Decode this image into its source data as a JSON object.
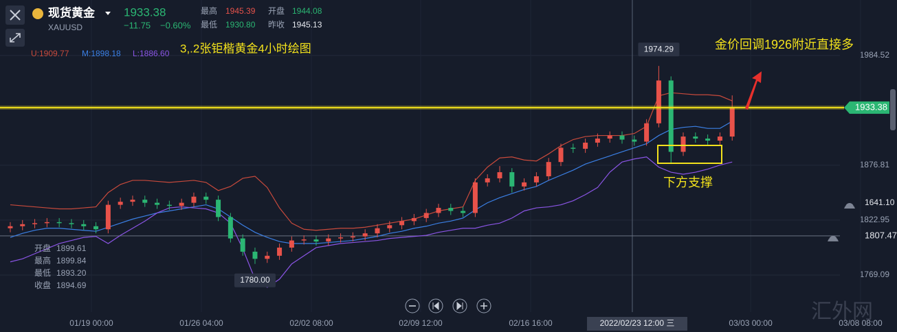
{
  "header": {
    "name": "现货黄金",
    "symbol": "XAUUSD",
    "price": "1933.38",
    "change": "−11.75",
    "change_pct": "−0.60%",
    "stats": [
      [
        "最高",
        "1945.39"
      ],
      [
        "开盘",
        "1944.08"
      ],
      [
        "最低",
        "1930.80"
      ],
      [
        "昨收",
        "1945.13"
      ]
    ]
  },
  "info_panel": [
    [
      "开盘",
      "1899.61"
    ],
    [
      "最高",
      "1899.84"
    ],
    [
      "最低",
      "1893.20"
    ],
    [
      "收盘",
      "1894.69"
    ]
  ],
  "watermark": "汇外网",
  "alert_note": "1641.10",
  "chart_data": {
    "type": "candlestick",
    "title": "3,.2张钜楷黄金4小时绘图",
    "annotations": [
      "金价回调1926附近直接多",
      "下方支撑"
    ],
    "x": [
      0,
      1,
      2,
      3,
      4,
      5,
      6,
      7,
      8,
      9,
      10,
      11,
      12,
      13,
      14,
      15,
      16,
      17,
      18,
      19,
      20,
      21,
      22,
      23,
      24,
      25,
      26,
      27,
      28,
      29,
      30,
      31,
      32,
      33,
      34,
      35,
      36,
      37,
      38,
      39,
      40,
      41,
      42,
      43,
      44,
      45,
      46,
      47,
      48,
      49,
      50,
      51,
      52,
      53,
      54,
      55,
      56,
      57,
      58,
      59
    ],
    "open": [
      1815,
      1817,
      1819,
      1820,
      1821,
      1820,
      1819,
      1817,
      1814,
      1838,
      1841,
      1843,
      1840,
      1838,
      1837,
      1840,
      1846,
      1843,
      1826,
      1805,
      1792,
      1785,
      1788,
      1796,
      1803,
      1804,
      1802,
      1805,
      1806,
      1807,
      1810,
      1815,
      1818,
      1822,
      1825,
      1830,
      1835,
      1832,
      1830,
      1860,
      1864,
      1870,
      1856,
      1860,
      1866,
      1880,
      1894,
      1893,
      1899,
      1903,
      1906,
      1902,
      1900,
      1918,
      1960,
      1890,
      1905,
      1903,
      1901,
      1905
    ],
    "high": [
      1821,
      1823,
      1824,
      1825,
      1825,
      1824,
      1823,
      1821,
      1842,
      1845,
      1847,
      1847,
      1844,
      1842,
      1844,
      1850,
      1850,
      1847,
      1830,
      1809,
      1796,
      1792,
      1800,
      1807,
      1808,
      1808,
      1809,
      1810,
      1811,
      1814,
      1819,
      1822,
      1826,
      1829,
      1834,
      1839,
      1839,
      1836,
      1864,
      1868,
      1876,
      1874,
      1864,
      1870,
      1884,
      1898,
      1898,
      1903,
      1908,
      1910,
      1910,
      1906,
      1922,
      1974.29,
      1964,
      1909,
      1909,
      1907,
      1909,
      1945.39
    ],
    "low": [
      1811,
      1813,
      1815,
      1816,
      1816,
      1815,
      1813,
      1810,
      1810,
      1834,
      1837,
      1836,
      1834,
      1833,
      1833,
      1836,
      1839,
      1822,
      1801,
      1788,
      1780,
      1781,
      1784,
      1792,
      1799,
      1798,
      1798,
      1801,
      1802,
      1803,
      1806,
      1811,
      1814,
      1818,
      1821,
      1826,
      1828,
      1826,
      1826,
      1856,
      1860,
      1850,
      1852,
      1856,
      1862,
      1876,
      1889,
      1889,
      1895,
      1899,
      1898,
      1896,
      1896,
      1914,
      1878,
      1886,
      1899,
      1897,
      1897,
      1901
    ],
    "close": [
      1817,
      1819,
      1820,
      1821,
      1820,
      1819,
      1817,
      1814,
      1838,
      1841,
      1843,
      1840,
      1838,
      1837,
      1840,
      1846,
      1843,
      1826,
      1805,
      1792,
      1785,
      1788,
      1796,
      1803,
      1804,
      1802,
      1805,
      1806,
      1807,
      1810,
      1815,
      1818,
      1822,
      1825,
      1830,
      1835,
      1832,
      1830,
      1860,
      1864,
      1870,
      1856,
      1860,
      1866,
      1880,
      1894,
      1893,
      1899,
      1903,
      1906,
      1902,
      1900,
      1918,
      1960,
      1890,
      1905,
      1903,
      1901,
      1905,
      1933.38
    ],
    "up_color": "#e8524a",
    "down_color": "#2bb673",
    "series": [
      {
        "name": "U:1909.77",
        "color": "#c94a3c",
        "values": [
          1838,
          1837,
          1836,
          1835,
          1834,
          1834,
          1835,
          1836,
          1850,
          1858,
          1862,
          1862,
          1861,
          1860,
          1861,
          1862,
          1860,
          1852,
          1856,
          1864,
          1866,
          1855,
          1835,
          1820,
          1814,
          1813,
          1814,
          1815,
          1815,
          1816,
          1818,
          1820,
          1822,
          1824,
          1828,
          1832,
          1834,
          1836,
          1862,
          1875,
          1884,
          1885,
          1882,
          1881,
          1888,
          1896,
          1902,
          1905,
          1906,
          1906,
          1906,
          1908,
          1915,
          1945,
          1948,
          1947,
          1946,
          1946,
          1945,
          1940
        ]
      },
      {
        "name": "M:1898.18",
        "color": "#3b80e6",
        "values": [
          1806,
          1810,
          1813,
          1815,
          1815,
          1814,
          1813,
          1812,
          1816,
          1820,
          1824,
          1827,
          1830,
          1832,
          1834,
          1836,
          1838,
          1834,
          1826,
          1818,
          1811,
          1806,
          1802,
          1800,
          1800,
          1800,
          1801,
          1802,
          1803,
          1805,
          1807,
          1810,
          1812,
          1815,
          1817,
          1820,
          1822,
          1825,
          1833,
          1840,
          1845,
          1849,
          1853,
          1856,
          1862,
          1867,
          1872,
          1878,
          1882,
          1886,
          1890,
          1894,
          1898,
          1906,
          1912,
          1914,
          1915,
          1913,
          1913,
          1920
        ]
      },
      {
        "name": "L:1886.60",
        "color": "#8b55e6",
        "values": [
          1782,
          1785,
          1790,
          1795,
          1800,
          1803,
          1806,
          1807,
          1800,
          1808,
          1815,
          1822,
          1830,
          1835,
          1836,
          1835,
          1834,
          1830,
          1820,
          1795,
          1765,
          1757,
          1765,
          1780,
          1788,
          1796,
          1798,
          1800,
          1801,
          1802,
          1803,
          1805,
          1806,
          1807,
          1808,
          1811,
          1813,
          1815,
          1815,
          1818,
          1820,
          1825,
          1832,
          1835,
          1836,
          1838,
          1842,
          1848,
          1855,
          1870,
          1880,
          1883,
          1885,
          1875,
          1870,
          1868,
          1870,
          1873,
          1877,
          1880
        ]
      }
    ],
    "xlim": [
      -0.84,
      72.47
    ],
    "xticks": [
      {
        "value": 6.63,
        "label": "01/19 00:00"
      },
      {
        "value": 15.62,
        "label": "01/26 04:00"
      },
      {
        "value": 24.61,
        "label": "02/02 08:00"
      },
      {
        "value": 33.54,
        "label": "02/09 12:00"
      },
      {
        "value": 42.53,
        "label": "02/16 16:00"
      },
      {
        "value": 60.51,
        "label": "03/03 00:00"
      },
      {
        "value": 69.49,
        "label": "03/08 08:00"
      }
    ],
    "ylim": [
      1732.7,
      2039.0
    ],
    "yticks": [
      1984.52,
      1876.81,
      1822.95,
      1769.09
    ],
    "grid": true,
    "crosshair": {
      "x": 50.84,
      "label": "2022/02/23 12:00 三"
    },
    "high_label": {
      "value": 1974.29,
      "label": "1974.29",
      "index": 53
    },
    "low_label": {
      "value": 1780,
      "label": "1780.00",
      "index": 20
    },
    "last_price": {
      "value": 1933.38,
      "label": "1933.38",
      "color": "#f3e21c"
    },
    "alert": {
      "value": 1807.47,
      "label": "1807.47"
    }
  }
}
